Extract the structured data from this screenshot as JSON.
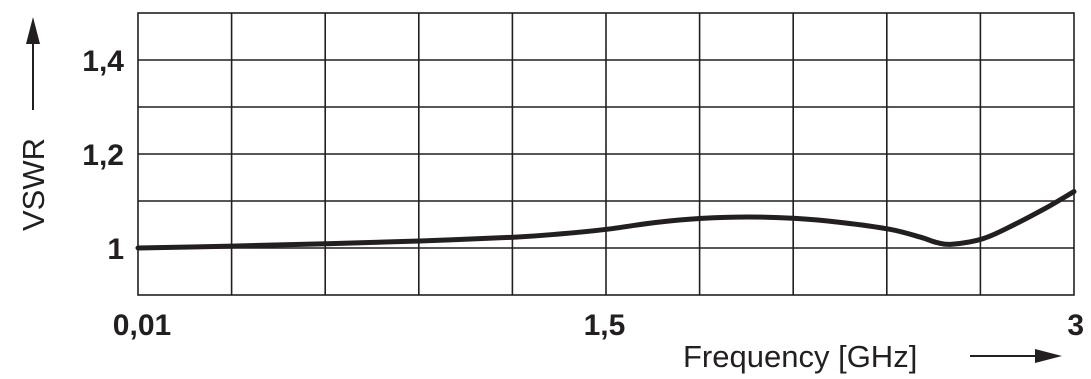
{
  "chart_data": {
    "type": "line",
    "xlabel": "Frequency [GHz]",
    "ylabel": "VSWR",
    "xlim": [
      0.01,
      3
    ],
    "ylim": [
      0.9,
      1.5
    ],
    "x_ticks": [
      {
        "value": 0.01,
        "label": "0,01"
      },
      {
        "value": 1.5,
        "label": "1,5"
      },
      {
        "value": 3,
        "label": "3"
      }
    ],
    "y_ticks": [
      {
        "value": 1.0,
        "label": "1"
      },
      {
        "value": 1.2,
        "label": "1,2"
      },
      {
        "value": 1.4,
        "label": "1,4"
      }
    ],
    "grid": true,
    "grid_x_divisions": 10,
    "grid_y_divisions": 6,
    "series": [
      {
        "x": [
          0.01,
          0.31,
          0.61,
          0.91,
          1.21,
          1.36,
          1.51,
          1.66,
          1.81,
          1.96,
          2.11,
          2.26,
          2.41,
          2.51,
          2.56,
          2.61,
          2.71,
          2.81,
          2.91,
          3.0
        ],
        "values": [
          1.0,
          1.004,
          1.009,
          1.015,
          1.023,
          1.03,
          1.04,
          1.054,
          1.063,
          1.066,
          1.063,
          1.054,
          1.04,
          1.023,
          1.012,
          1.008,
          1.02,
          1.05,
          1.085,
          1.12
        ]
      }
    ],
    "colors": {
      "ink": "#231f20",
      "background": "#ffffff"
    }
  }
}
